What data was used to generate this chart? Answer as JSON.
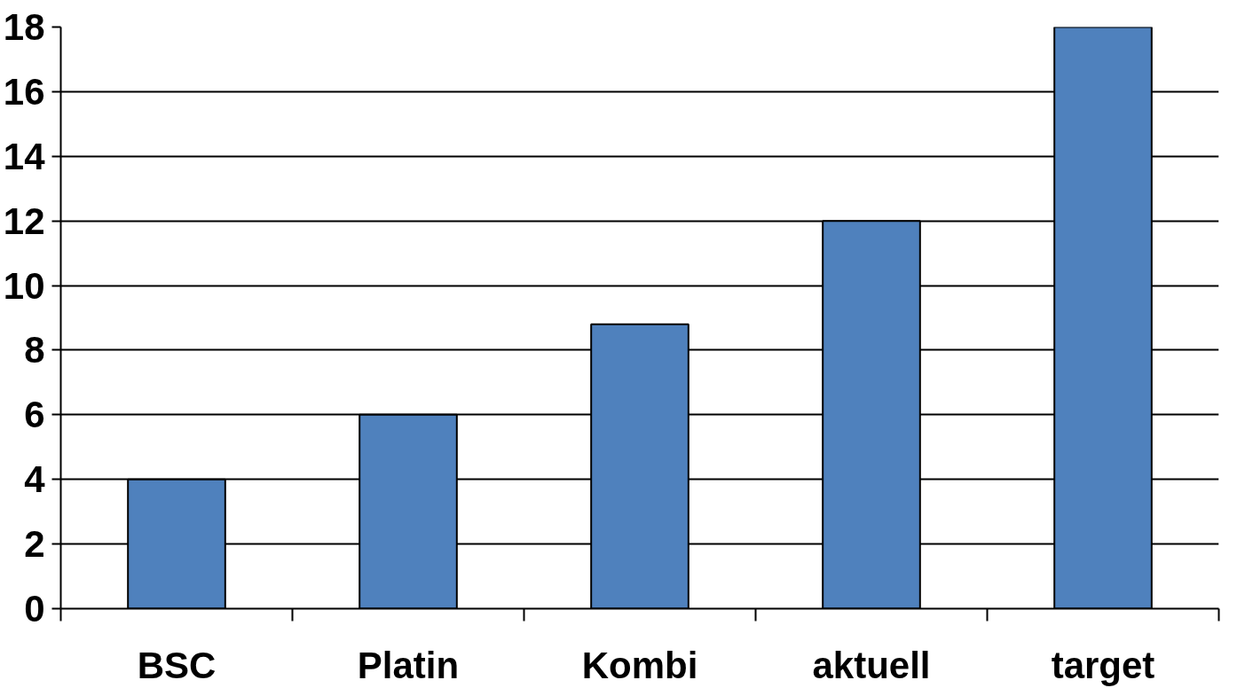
{
  "chart_data": {
    "type": "bar",
    "categories": [
      "BSC",
      "Platin",
      "Kombi",
      "aktuell",
      "target"
    ],
    "values": [
      4,
      6,
      8.8,
      12,
      18
    ],
    "color": "#4f81bd",
    "ylim": [
      0,
      18
    ],
    "yticks": [
      0,
      2,
      4,
      6,
      8,
      10,
      12,
      14,
      16,
      18
    ],
    "grid": "y"
  }
}
